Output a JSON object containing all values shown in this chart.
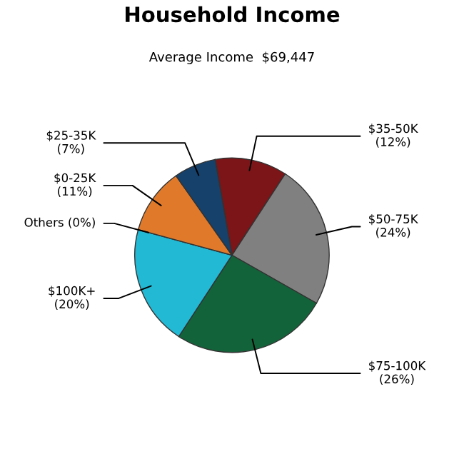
{
  "chart_data": {
    "type": "pie",
    "title": "Household Income",
    "subtitle": "Average Income  $69,447",
    "categories": [
      "$35-50K",
      "$50-75K",
      "$75-100K",
      "$100K+",
      "Others",
      "$0-25K",
      "$25-35K"
    ],
    "values": [
      12,
      24,
      26,
      20,
      0,
      11,
      7
    ],
    "value_labels": [
      "(12%)",
      "(24%)",
      "(26%)",
      "(20%)",
      "(0%)",
      "(11%)",
      "(7%)"
    ],
    "colors": [
      "#7b1518",
      "#808080",
      "#13633a",
      "#22b9d5",
      "#9ccc3c",
      "#e07a2a",
      "#15416b"
    ]
  }
}
